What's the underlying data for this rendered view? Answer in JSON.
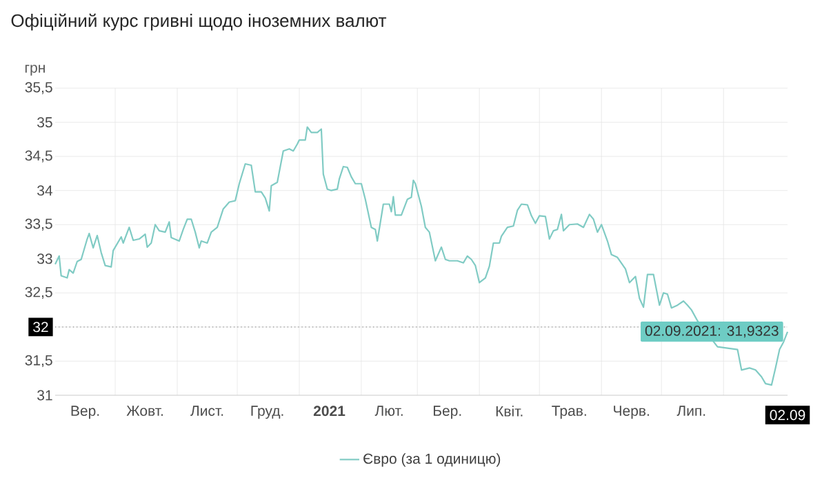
{
  "chart_data": {
    "type": "line",
    "title": "Офіційний курс гривні щодо іноземних валют",
    "ylabel": "грн",
    "x": [
      "2020-09-01",
      "2020-09-03",
      "2020-09-04",
      "2020-09-07",
      "2020-09-08",
      "2020-09-10",
      "2020-09-12",
      "2020-09-14",
      "2020-09-17",
      "2020-09-18",
      "2020-09-20",
      "2020-09-22",
      "2020-09-24",
      "2020-09-26",
      "2020-09-29",
      "2020-09-30",
      "2020-10-04",
      "2020-10-05",
      "2020-10-08",
      "2020-10-10",
      "2020-10-13",
      "2020-10-16",
      "2020-10-17",
      "2020-10-19",
      "2020-10-21",
      "2020-10-23",
      "2020-10-26",
      "2020-10-28",
      "2020-10-29",
      "2020-11-02",
      "2020-11-04",
      "2020-11-06",
      "2020-11-08",
      "2020-11-10",
      "2020-11-12",
      "2020-11-13",
      "2020-11-16",
      "2020-11-18",
      "2020-11-21",
      "2020-11-24",
      "2020-11-27",
      "2020-11-30",
      "2020-12-02",
      "2020-12-05",
      "2020-12-08",
      "2020-12-10",
      "2020-12-13",
      "2020-12-15",
      "2020-12-17",
      "2020-12-18",
      "2020-12-21",
      "2020-12-24",
      "2020-12-27",
      "2020-12-29",
      "2020-12-31",
      "2021-01-01",
      "2021-01-04",
      "2021-01-05",
      "2021-01-07",
      "2021-01-10",
      "2021-01-12",
      "2021-01-13",
      "2021-01-15",
      "2021-01-17",
      "2021-01-20",
      "2021-01-21",
      "2021-01-23",
      "2021-01-25",
      "2021-01-27",
      "2021-01-29",
      "2021-02-01",
      "2021-02-03",
      "2021-02-06",
      "2021-02-08",
      "2021-02-09",
      "2021-02-12",
      "2021-02-15",
      "2021-02-16",
      "2021-02-17",
      "2021-02-18",
      "2021-02-21",
      "2021-02-24",
      "2021-02-26",
      "2021-02-27",
      "2021-02-28",
      "2021-03-03",
      "2021-03-05",
      "2021-03-07",
      "2021-03-10",
      "2021-03-13",
      "2021-03-15",
      "2021-03-17",
      "2021-03-21",
      "2021-03-24",
      "2021-03-26",
      "2021-03-28",
      "2021-03-30",
      "2021-04-01",
      "2021-04-04",
      "2021-04-06",
      "2021-04-08",
      "2021-04-11",
      "2021-04-12",
      "2021-04-15",
      "2021-04-18",
      "2021-04-20",
      "2021-04-22",
      "2021-04-25",
      "2021-04-27",
      "2021-04-29",
      "2021-05-01",
      "2021-05-04",
      "2021-05-06",
      "2021-05-08",
      "2021-05-10",
      "2021-05-12",
      "2021-05-13",
      "2021-05-16",
      "2021-05-20",
      "2021-05-23",
      "2021-05-26",
      "2021-05-28",
      "2021-05-30",
      "2021-06-01",
      "2021-06-04",
      "2021-06-06",
      "2021-06-09",
      "2021-06-13",
      "2021-06-15",
      "2021-06-18",
      "2021-06-20",
      "2021-06-22",
      "2021-06-24",
      "2021-06-27",
      "2021-06-30",
      "2021-07-02",
      "2021-07-04",
      "2021-07-06",
      "2021-07-09",
      "2021-07-12",
      "2021-07-14",
      "2021-07-16",
      "2021-07-19",
      "2021-07-22",
      "2021-07-29",
      "2021-08-08",
      "2021-08-10",
      "2021-08-14",
      "2021-08-17",
      "2021-08-20",
      "2021-08-22",
      "2021-08-25",
      "2021-08-27",
      "2021-08-29",
      "2021-08-31",
      "2021-09-02"
    ],
    "series": [
      {
        "name": "Євро (за 1 одиницю)",
        "color": "#80cbc4",
        "values": [
          32.92,
          33.04,
          32.75,
          32.72,
          32.84,
          32.79,
          32.96,
          32.99,
          33.29,
          33.37,
          33.16,
          33.34,
          33.09,
          32.9,
          32.88,
          33.12,
          33.32,
          33.23,
          33.46,
          33.27,
          33.29,
          33.36,
          33.17,
          33.23,
          33.5,
          33.41,
          33.39,
          33.54,
          33.31,
          33.26,
          33.43,
          33.58,
          33.58,
          33.39,
          33.16,
          33.26,
          33.23,
          33.39,
          33.46,
          33.73,
          33.83,
          33.85,
          34.1,
          34.39,
          34.37,
          33.98,
          33.98,
          33.89,
          33.7,
          34.07,
          34.12,
          34.58,
          34.61,
          34.58,
          34.68,
          34.74,
          34.74,
          34.93,
          34.85,
          34.85,
          34.9,
          34.24,
          34.02,
          34.0,
          34.02,
          34.17,
          34.35,
          34.34,
          34.2,
          34.1,
          34.1,
          33.87,
          33.46,
          33.43,
          33.26,
          33.8,
          33.8,
          33.69,
          33.91,
          33.64,
          33.64,
          33.87,
          33.9,
          34.15,
          34.1,
          33.77,
          33.46,
          33.39,
          32.97,
          33.17,
          32.99,
          32.97,
          32.97,
          32.94,
          33.04,
          32.99,
          32.9,
          32.65,
          32.72,
          32.89,
          33.23,
          33.23,
          33.33,
          33.46,
          33.48,
          33.71,
          33.8,
          33.79,
          33.63,
          33.52,
          33.63,
          33.62,
          33.29,
          33.41,
          33.43,
          33.65,
          33.41,
          33.5,
          33.51,
          33.46,
          33.65,
          33.58,
          33.39,
          33.5,
          33.26,
          33.06,
          33.02,
          32.85,
          32.65,
          32.74,
          32.42,
          32.29,
          32.77,
          32.77,
          32.32,
          32.5,
          32.48,
          32.28,
          32.32,
          32.38,
          32.32,
          32.25,
          32.09,
          null,
          31.71,
          31.67,
          31.37,
          31.4,
          31.37,
          31.27,
          31.17,
          31.15,
          31.4,
          31.67,
          31.78,
          31.93
        ]
      }
    ],
    "xlim": [
      "2020-09-01",
      "2021-09-02"
    ],
    "xticks": [
      {
        "value": "2020-09-16",
        "label": "Вер."
      },
      {
        "value": "2020-10-16",
        "label": "Жовт."
      },
      {
        "value": "2020-11-16",
        "label": "Лист."
      },
      {
        "value": "2020-12-16",
        "label": "Груд."
      },
      {
        "value": "2021-01-01",
        "label": null
      },
      {
        "value": "2021-01-16",
        "label": "2021"
      },
      {
        "value": "2021-02-15",
        "label": "Лют."
      },
      {
        "value": "2021-03-16",
        "label": "Бер."
      },
      {
        "value": "2021-04-16",
        "label": "Квіт."
      },
      {
        "value": "2021-05-16",
        "label": "Трав."
      },
      {
        "value": "2021-06-16",
        "label": "Черв."
      },
      {
        "value": "2021-07-16",
        "label": "Лип."
      },
      {
        "value": "2021-09-02",
        "label": "02.09"
      },
      {
        "value": "2020-10-01",
        "label": null
      },
      {
        "value": "2020-11-01",
        "label": null
      },
      {
        "value": "2020-12-01",
        "label": null
      },
      {
        "value": "2021-02-01",
        "label": null
      },
      {
        "value": "2021-03-01",
        "label": null
      },
      {
        "value": "2021-04-01",
        "label": null
      },
      {
        "value": "2021-05-01",
        "label": null
      },
      {
        "value": "2021-06-01",
        "label": null
      },
      {
        "value": "2021-07-01",
        "label": null
      },
      {
        "value": "2021-08-01",
        "label": null
      }
    ],
    "ylim": [
      31,
      35.5
    ],
    "yticks": [
      {
        "value": 31,
        "label": "31"
      },
      {
        "value": 31.5,
        "label": "31,5"
      },
      {
        "value": 32,
        "label": "32"
      },
      {
        "value": 32.5,
        "label": "32,5"
      },
      {
        "value": 33,
        "label": "33"
      },
      {
        "value": 33.5,
        "label": "33,5"
      },
      {
        "value": 34,
        "label": "34"
      },
      {
        "value": 34.5,
        "label": "34,5"
      },
      {
        "value": 35,
        "label": "35"
      },
      {
        "value": 35.5,
        "label": "35,5"
      }
    ],
    "ref_lines": [
      {
        "axis": "y",
        "value": 32,
        "line_style": "dotted",
        "color": "#888888"
      }
    ],
    "annotations": [
      {
        "text": "02.09.2021: 31,9323",
        "x": "2021-09-02",
        "y": 31.9323
      }
    ],
    "grid": true,
    "legend": "bottom"
  }
}
